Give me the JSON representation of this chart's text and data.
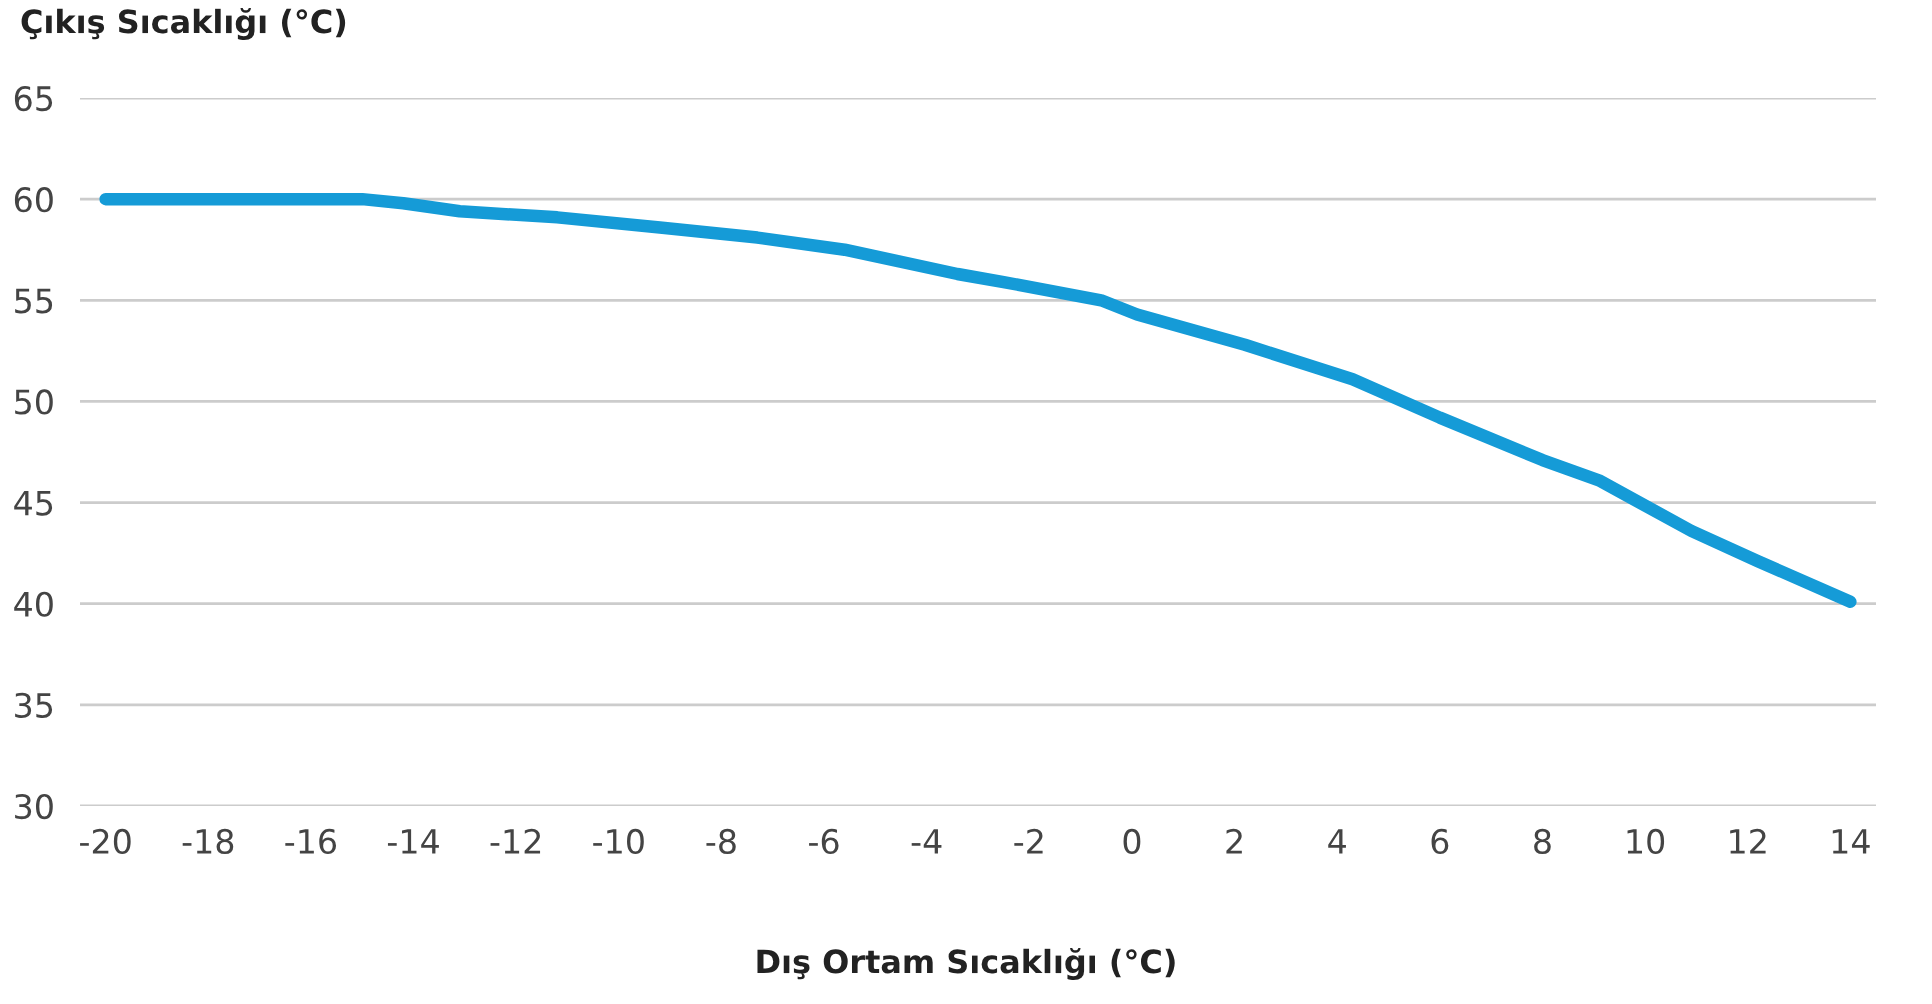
{
  "chart_data": {
    "type": "line",
    "title": "Çıkış Sıcaklığı (°C)",
    "xlabel": "Dış Ortam Sıcaklığı (°C)",
    "series": [
      {
        "color": "#159bd7",
        "x": [
          -20,
          -15,
          -14.2,
          -13.1,
          -11.2,
          -9.2,
          -7.3,
          -5.6,
          -3.4,
          -2.5,
          -0.6,
          0.1,
          2.2,
          4.3,
          6,
          8,
          9.1,
          10.9,
          12.2,
          14
        ],
        "values": [
          60,
          60,
          59.8,
          59.4,
          59.1,
          58.6,
          58.1,
          57.5,
          56.3,
          55.9,
          55,
          54.3,
          52.8,
          51.1,
          49.2,
          47.1,
          46.1,
          43.6,
          42.1,
          40.1
        ]
      }
    ],
    "xlim": [
      -20.5,
      14.5
    ],
    "xticks": [
      -20,
      -18,
      -16,
      -14,
      -12,
      -10,
      -8,
      -6,
      -4,
      -2,
      0,
      2,
      4,
      6,
      8,
      10,
      12,
      14
    ],
    "ylim": [
      30,
      65
    ],
    "yticks": [
      30,
      35,
      40,
      45,
      50,
      55,
      60,
      65
    ],
    "grid": "y",
    "line_style": "solid",
    "marker": "none"
  }
}
